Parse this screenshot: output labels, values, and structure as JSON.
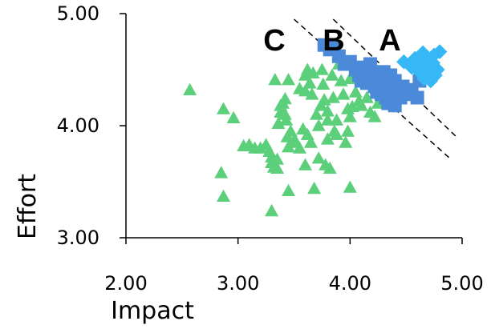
{
  "chart_data": {
    "type": "scatter",
    "xlabel": "Impact",
    "ylabel": "Effort",
    "xlim": [
      2,
      5
    ],
    "ylim": [
      3,
      5
    ],
    "x_ticks": [
      "2.00",
      "3.00",
      "4.00",
      "5.00"
    ],
    "y_ticks": [
      "3.00",
      "4.00",
      "5.00"
    ],
    "grid": false,
    "annotations": [
      "C",
      "B",
      "A"
    ],
    "divider_lines": [
      {
        "x": [
          3.5,
          4.9
        ],
        "y": [
          4.95,
          3.7
        ]
      },
      {
        "x": [
          3.85,
          4.95
        ],
        "y": [
          4.95,
          3.9
        ]
      }
    ],
    "series": [
      {
        "marker": "triangle",
        "color": "#5ccf7a",
        "points": [
          [
            2.57,
            4.32
          ],
          [
            2.85,
            3.58
          ],
          [
            2.87,
            3.37
          ],
          [
            2.87,
            4.15
          ],
          [
            2.96,
            4.07
          ],
          [
            3.05,
            3.82
          ],
          [
            3.1,
            3.83
          ],
          [
            3.15,
            3.8
          ],
          [
            3.2,
            3.8
          ],
          [
            3.25,
            3.83
          ],
          [
            3.28,
            3.77
          ],
          [
            3.3,
            3.72
          ],
          [
            3.3,
            3.67
          ],
          [
            3.3,
            3.24
          ],
          [
            3.32,
            3.63
          ],
          [
            3.33,
            4.41
          ],
          [
            3.35,
            3.7
          ],
          [
            3.35,
            3.62
          ],
          [
            3.36,
            4.02
          ],
          [
            3.38,
            4.18
          ],
          [
            3.38,
            4.12
          ],
          [
            3.4,
            4.2
          ],
          [
            3.42,
            4.24
          ],
          [
            3.42,
            4.1
          ],
          [
            3.43,
            4.05
          ],
          [
            3.44,
            3.9
          ],
          [
            3.45,
            4.41
          ],
          [
            3.45,
            3.81
          ],
          [
            3.45,
            3.42
          ],
          [
            3.47,
            3.95
          ],
          [
            3.5,
            3.87
          ],
          [
            3.52,
            3.85
          ],
          [
            3.55,
            4.33
          ],
          [
            3.55,
            3.8
          ],
          [
            3.58,
            3.97
          ],
          [
            3.6,
            4.45
          ],
          [
            3.6,
            4.31
          ],
          [
            3.6,
            3.65
          ],
          [
            3.62,
            4.5
          ],
          [
            3.62,
            3.92
          ],
          [
            3.64,
            4.38
          ],
          [
            3.65,
            3.85
          ],
          [
            3.66,
            4.28
          ],
          [
            3.67,
            4.47
          ],
          [
            3.68,
            3.44
          ],
          [
            3.7,
            4.1
          ],
          [
            3.72,
            4.0
          ],
          [
            3.72,
            3.71
          ],
          [
            3.74,
            4.18
          ],
          [
            3.75,
            4.5
          ],
          [
            3.76,
            4.37
          ],
          [
            3.77,
            4.23
          ],
          [
            3.78,
            3.65
          ],
          [
            3.8,
            4.13
          ],
          [
            3.8,
            4.05
          ],
          [
            3.8,
            3.88
          ],
          [
            3.82,
            3.62
          ],
          [
            3.84,
            4.45
          ],
          [
            3.85,
            4.25
          ],
          [
            3.86,
            3.95
          ],
          [
            3.88,
            3.92
          ],
          [
            3.88,
            4.05
          ],
          [
            3.9,
            4.55
          ],
          [
            3.92,
            4.4
          ],
          [
            3.94,
            4.28
          ],
          [
            3.96,
            3.85
          ],
          [
            3.98,
            4.15
          ],
          [
            3.98,
            3.95
          ],
          [
            4.0,
            4.08
          ],
          [
            4.0,
            3.45
          ],
          [
            4.0,
            4.42
          ],
          [
            4.02,
            4.17
          ],
          [
            4.05,
            4.3
          ],
          [
            4.08,
            4.22
          ],
          [
            4.1,
            4.18
          ],
          [
            4.15,
            4.25
          ],
          [
            4.18,
            4.12
          ],
          [
            4.22,
            4.08
          ],
          [
            4.25,
            4.2
          ]
        ]
      },
      {
        "marker": "square",
        "color": "#4a8ad8",
        "points": [
          [
            3.77,
            4.72
          ],
          [
            3.82,
            4.68
          ],
          [
            3.85,
            4.7
          ],
          [
            3.9,
            4.62
          ],
          [
            3.95,
            4.55
          ],
          [
            4.0,
            4.57
          ],
          [
            4.05,
            4.5
          ],
          [
            4.08,
            4.45
          ],
          [
            4.1,
            4.4
          ],
          [
            4.12,
            4.52
          ],
          [
            4.15,
            4.38
          ],
          [
            4.18,
            4.55
          ],
          [
            4.2,
            4.45
          ],
          [
            4.22,
            4.35
          ],
          [
            4.24,
            4.3
          ],
          [
            4.25,
            4.42
          ],
          [
            4.28,
            4.28
          ],
          [
            4.3,
            4.38
          ],
          [
            4.3,
            4.48
          ],
          [
            4.32,
            4.25
          ],
          [
            4.34,
            4.2
          ],
          [
            4.35,
            4.32
          ],
          [
            4.36,
            4.45
          ],
          [
            4.38,
            4.28
          ],
          [
            4.4,
            4.18
          ],
          [
            4.4,
            4.4
          ],
          [
            4.42,
            4.3
          ],
          [
            4.45,
            4.25
          ],
          [
            4.47,
            4.35
          ],
          [
            4.5,
            4.28
          ],
          [
            4.55,
            4.32
          ],
          [
            4.6,
            4.25
          ],
          [
            4.62,
            4.4
          ]
        ]
      },
      {
        "marker": "diamond",
        "color": "#35b8f5",
        "points": [
          [
            4.48,
            4.57
          ],
          [
            4.55,
            4.52
          ],
          [
            4.58,
            4.6
          ],
          [
            4.62,
            4.55
          ],
          [
            4.63,
            4.47
          ],
          [
            4.65,
            4.65
          ],
          [
            4.66,
            4.42
          ],
          [
            4.68,
            4.6
          ],
          [
            4.7,
            4.5
          ],
          [
            4.72,
            4.4
          ],
          [
            4.74,
            4.56
          ],
          [
            4.75,
            4.63
          ],
          [
            4.76,
            4.45
          ],
          [
            4.78,
            4.5
          ],
          [
            4.8,
            4.66
          ]
        ]
      }
    ]
  }
}
